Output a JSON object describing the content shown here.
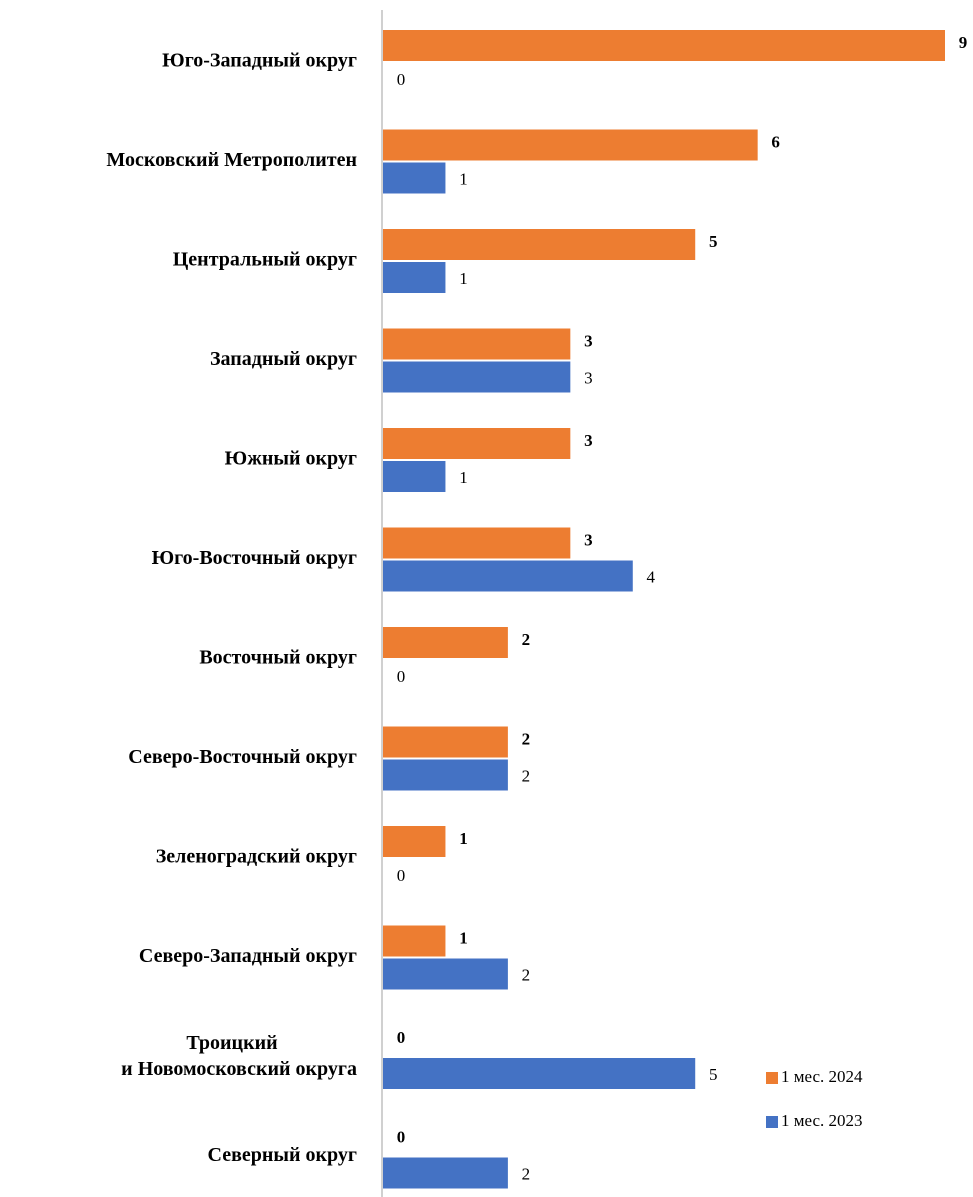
{
  "chart_data": {
    "type": "hbar",
    "categories": [
      "Юго-Западный округ",
      "Московский Метрополитен",
      "Центральный округ",
      "Западный округ",
      "Южный округ",
      "Юго-Восточный округ",
      "Восточный округ",
      "Северо-Восточный округ",
      "Зеленоградский округ",
      "Северо-Западный округ",
      "Троицкий\nи Новомосковский округа",
      "Северный округ"
    ],
    "series": [
      {
        "name": "1 мес. 2024",
        "color": "#ed7d31",
        "values": [
          9,
          6,
          5,
          3,
          3,
          3,
          2,
          2,
          1,
          1,
          0,
          0
        ]
      },
      {
        "name": "1 мес. 2023",
        "color": "#4472c4",
        "values": [
          0,
          1,
          1,
          3,
          1,
          4,
          0,
          2,
          0,
          2,
          5,
          2
        ]
      }
    ],
    "xlim": [
      0,
      9
    ]
  }
}
